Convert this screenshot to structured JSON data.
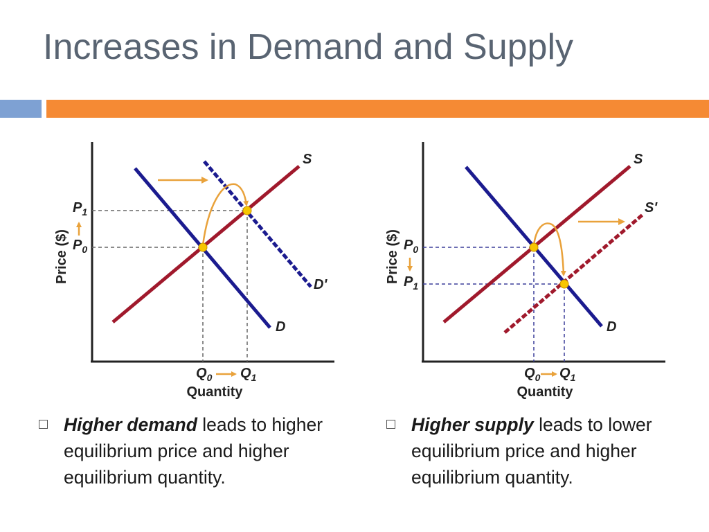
{
  "slide": {
    "title": "Increases in Demand and Supply"
  },
  "charts": [
    {
      "ylabel": "Price ($)",
      "xlabel": "Quantity",
      "labels": {
        "S": "S",
        "D": "D",
        "shifted": "D'",
        "p_top": "P",
        "p_top_sub": "1",
        "p_bottom": "P",
        "p_bottom_sub": "0",
        "q_left": "Q",
        "q_left_sub": "0",
        "q_right": "Q",
        "q_right_sub": "1"
      }
    },
    {
      "ylabel": "Price ($)",
      "xlabel": "Quantity",
      "labels": {
        "S": "S",
        "D": "D",
        "shifted": "S'",
        "p_top": "P",
        "p_top_sub": "0",
        "p_bottom": "P",
        "p_bottom_sub": "1",
        "q_left": "Q",
        "q_left_sub": "0",
        "q_right": "Q",
        "q_right_sub": "1"
      }
    }
  ],
  "bullets": [
    {
      "bold": "Higher demand",
      "rest1": " leads to higher",
      "line2": "equilibrium price and higher",
      "line3": "equilibrium quantity."
    },
    {
      "bold": "Higher supply",
      "rest1": " leads to lower",
      "line2": "equilibrium price and higher",
      "line3": "equilibrium quantity."
    }
  ],
  "colors": {
    "title": "#596472",
    "accent_orange": "#f58a34",
    "accent_blue": "#7ea1d3",
    "supply": "#a0192c",
    "demand": "#1b1b8f",
    "equilibrium": "#f7c600",
    "arrow": "#e9a23b"
  }
}
